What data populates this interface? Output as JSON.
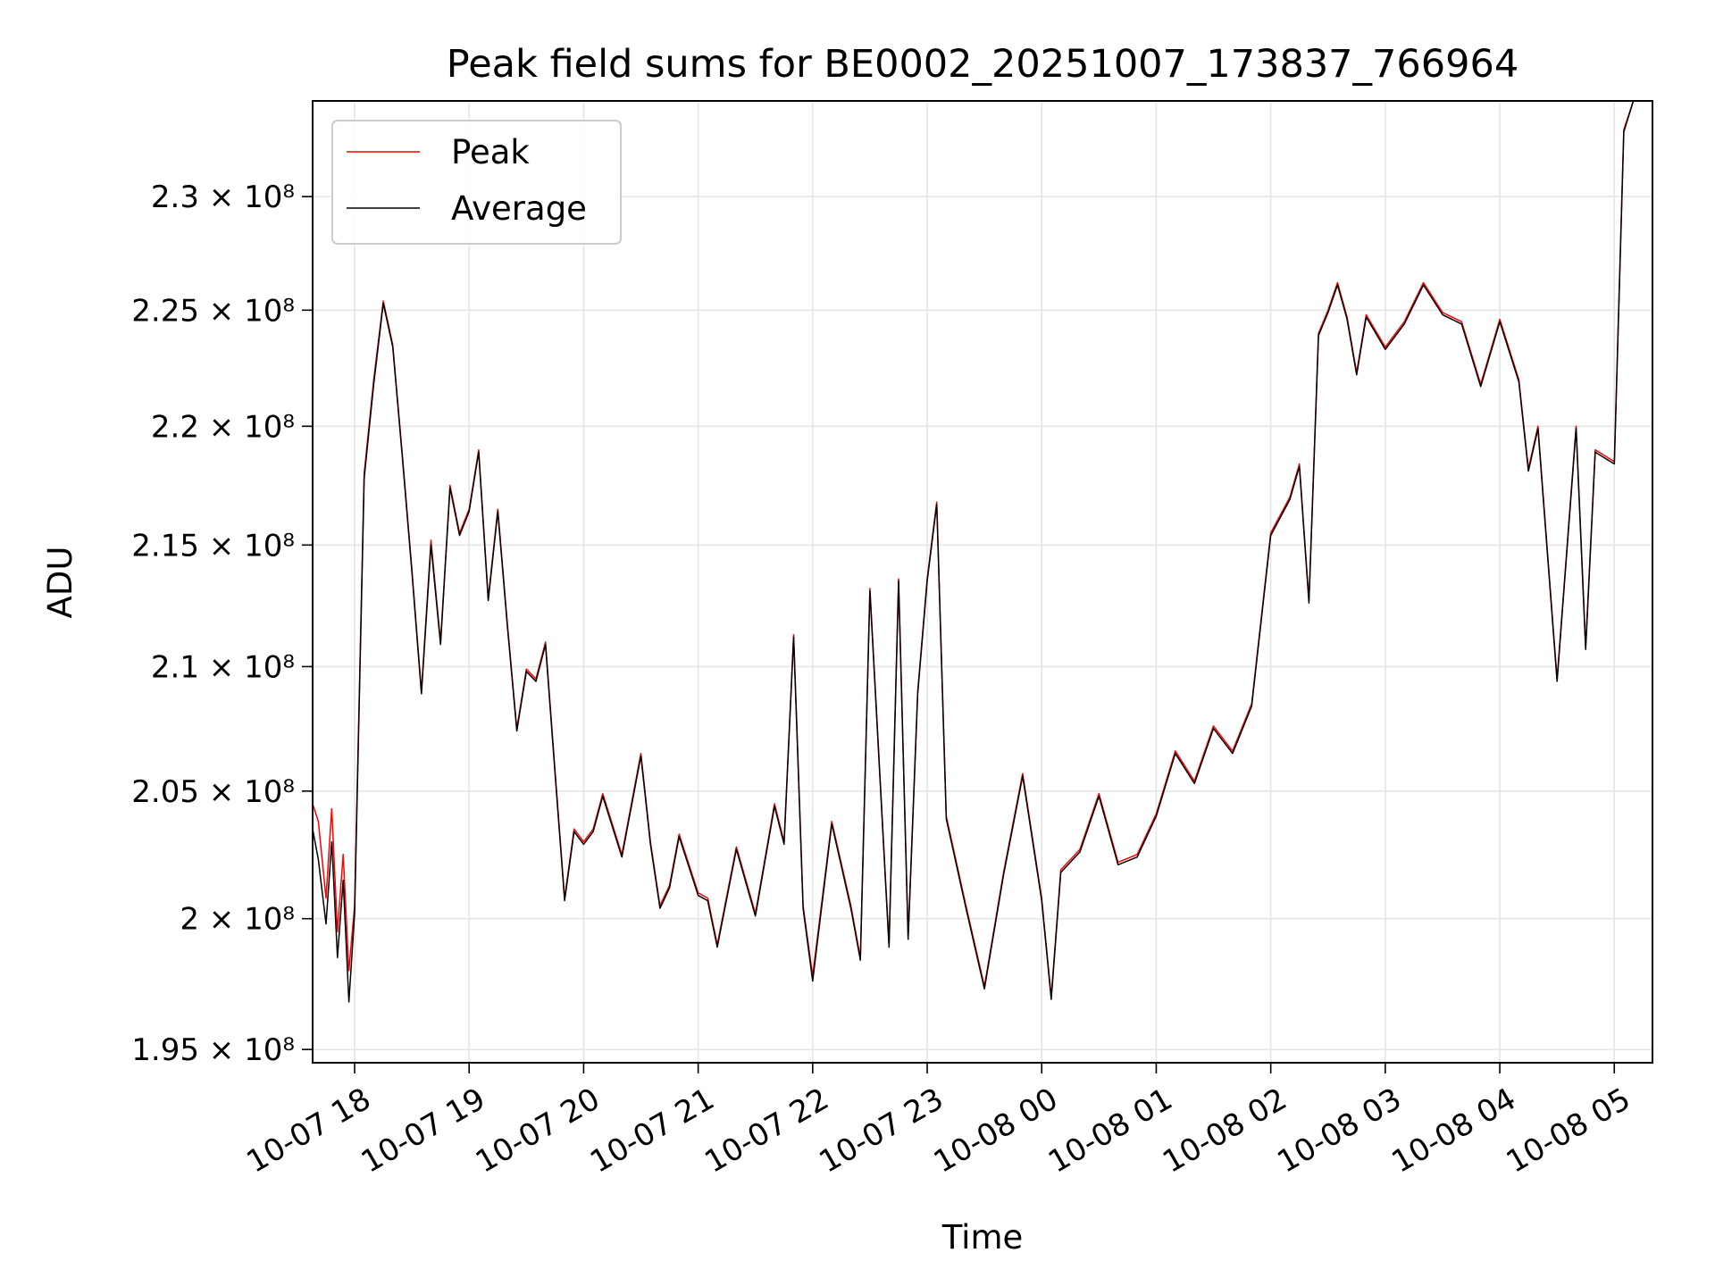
{
  "chart_data": {
    "type": "line",
    "title": "Peak field sums for BE0002_20251007_173837_766964",
    "xlabel": "Time",
    "ylabel": "ADU",
    "xlim": [
      "2025-10-07 17:38",
      "2025-10-08 05:20"
    ],
    "ylim": [
      194500000,
      234300000
    ],
    "y_scale": "log",
    "grid": true,
    "legend": "top-left",
    "x_ticks": [
      "10-07 18",
      "10-07 19",
      "10-07 20",
      "10-07 21",
      "10-07 22",
      "10-07 23",
      "10-08 00",
      "10-08 01",
      "10-08 02",
      "10-08 03",
      "10-08 04",
      "10-08 05"
    ],
    "y_ticks": [
      {
        "value": 195000000,
        "label": "1.95 × 10⁸"
      },
      {
        "value": 200000000,
        "label": "2 × 10⁸"
      },
      {
        "value": 205000000,
        "label": "2.05 × 10⁸"
      },
      {
        "value": 210000000,
        "label": "2.1 × 10⁸"
      },
      {
        "value": 215000000,
        "label": "2.15 × 10⁸"
      },
      {
        "value": 220000000,
        "label": "2.2 × 10⁸"
      },
      {
        "value": 225000000,
        "label": "2.25 × 10⁸"
      },
      {
        "value": 230000000,
        "label": "2.3 × 10⁸"
      }
    ],
    "series": [
      {
        "name": "Peak",
        "color": "#ff0000",
        "x": [
          "2025-10-07 17:38",
          "2025-10-07 17:41",
          "2025-10-07 17:45",
          "2025-10-07 17:48",
          "2025-10-07 17:51",
          "2025-10-07 17:54",
          "2025-10-07 17:57",
          "2025-10-07 18:00",
          "2025-10-07 18:05",
          "2025-10-07 18:10",
          "2025-10-07 18:15",
          "2025-10-07 18:20",
          "2025-10-07 18:25",
          "2025-10-07 18:30",
          "2025-10-07 18:35",
          "2025-10-07 18:40",
          "2025-10-07 18:45",
          "2025-10-07 18:50",
          "2025-10-07 18:55",
          "2025-10-07 19:00",
          "2025-10-07 19:05",
          "2025-10-07 19:10",
          "2025-10-07 19:15",
          "2025-10-07 19:20",
          "2025-10-07 19:25",
          "2025-10-07 19:30",
          "2025-10-07 19:35",
          "2025-10-07 19:40",
          "2025-10-07 19:45",
          "2025-10-07 19:50",
          "2025-10-07 19:55",
          "2025-10-07 20:00",
          "2025-10-07 20:05",
          "2025-10-07 20:10",
          "2025-10-07 20:20",
          "2025-10-07 20:30",
          "2025-10-07 20:35",
          "2025-10-07 20:40",
          "2025-10-07 20:45",
          "2025-10-07 20:50",
          "2025-10-07 21:00",
          "2025-10-07 21:05",
          "2025-10-07 21:10",
          "2025-10-07 21:20",
          "2025-10-07 21:30",
          "2025-10-07 21:40",
          "2025-10-07 21:45",
          "2025-10-07 21:50",
          "2025-10-07 21:55",
          "2025-10-07 22:00",
          "2025-10-07 22:10",
          "2025-10-07 22:20",
          "2025-10-07 22:25",
          "2025-10-07 22:30",
          "2025-10-07 22:40",
          "2025-10-07 22:45",
          "2025-10-07 22:50",
          "2025-10-07 22:55",
          "2025-10-07 23:00",
          "2025-10-07 23:05",
          "2025-10-07 23:10",
          "2025-10-07 23:20",
          "2025-10-07 23:30",
          "2025-10-07 23:40",
          "2025-10-07 23:50",
          "2025-10-08 00:00",
          "2025-10-08 00:05",
          "2025-10-08 00:10",
          "2025-10-08 00:20",
          "2025-10-08 00:30",
          "2025-10-08 00:40",
          "2025-10-08 00:50",
          "2025-10-08 01:00",
          "2025-10-08 01:10",
          "2025-10-08 01:20",
          "2025-10-08 01:30",
          "2025-10-08 01:40",
          "2025-10-08 01:50",
          "2025-10-08 02:00",
          "2025-10-08 02:10",
          "2025-10-08 02:15",
          "2025-10-08 02:20",
          "2025-10-08 02:25",
          "2025-10-08 02:30",
          "2025-10-08 02:35",
          "2025-10-08 02:40",
          "2025-10-08 02:45",
          "2025-10-08 02:50",
          "2025-10-08 03:00",
          "2025-10-08 03:10",
          "2025-10-08 03:20",
          "2025-10-08 03:30",
          "2025-10-08 03:40",
          "2025-10-08 03:50",
          "2025-10-08 04:00",
          "2025-10-08 04:10",
          "2025-10-08 04:15",
          "2025-10-08 04:20",
          "2025-10-08 04:30",
          "2025-10-08 04:40",
          "2025-10-08 04:45",
          "2025-10-08 04:50",
          "2025-10-08 05:00",
          "2025-10-08 05:05",
          "2025-10-08 05:10",
          "2025-10-08 05:15",
          "2025-10-08 05:20"
        ],
        "values": [
          204500000,
          203800000,
          200800000,
          204300000,
          199500000,
          202500000,
          198000000,
          200500000,
          218000000,
          222000000,
          225400000,
          223500000,
          218800000,
          214000000,
          209000000,
          215200000,
          211000000,
          217500000,
          215500000,
          216500000,
          219000000,
          212800000,
          216500000,
          211800000,
          207500000,
          209900000,
          209500000,
          211000000,
          205800000,
          200800000,
          203500000,
          203000000,
          203500000,
          204900000,
          202500000,
          206500000,
          203000000,
          200500000,
          201300000,
          203300000,
          201000000,
          200800000,
          199000000,
          202800000,
          200200000,
          204500000,
          203000000,
          211300000,
          200500000,
          197800000,
          203800000,
          200500000,
          198500000,
          213200000,
          199000000,
          213600000,
          199300000,
          209000000,
          213600000,
          216800000,
          204000000,
          200600000,
          197400000,
          201800000,
          205700000,
          200800000,
          197000000,
          201900000,
          202700000,
          204900000,
          202200000,
          202500000,
          204100000,
          206600000,
          205400000,
          207600000,
          206600000,
          208500000,
          215500000,
          217000000,
          218400000,
          212700000,
          224000000,
          225000000,
          226200000,
          224700000,
          222300000,
          224800000,
          223400000,
          224500000,
          226200000,
          224900000,
          224500000,
          221800000,
          224600000,
          222000000,
          218200000,
          220000000,
          209500000,
          220000000,
          210800000,
          219000000,
          218500000,
          233000000,
          234300000,
          234300000,
          234300000
        ]
      },
      {
        "name": "Average",
        "color": "#000000",
        "x": [
          "2025-10-07 17:38",
          "2025-10-07 17:41",
          "2025-10-07 17:45",
          "2025-10-07 17:48",
          "2025-10-07 17:51",
          "2025-10-07 17:54",
          "2025-10-07 17:57",
          "2025-10-07 18:00",
          "2025-10-07 18:05",
          "2025-10-07 18:10",
          "2025-10-07 18:15",
          "2025-10-07 18:20",
          "2025-10-07 18:25",
          "2025-10-07 18:30",
          "2025-10-07 18:35",
          "2025-10-07 18:40",
          "2025-10-07 18:45",
          "2025-10-07 18:50",
          "2025-10-07 18:55",
          "2025-10-07 19:00",
          "2025-10-07 19:05",
          "2025-10-07 19:10",
          "2025-10-07 19:15",
          "2025-10-07 19:20",
          "2025-10-07 19:25",
          "2025-10-07 19:30",
          "2025-10-07 19:35",
          "2025-10-07 19:40",
          "2025-10-07 19:45",
          "2025-10-07 19:50",
          "2025-10-07 19:55",
          "2025-10-07 20:00",
          "2025-10-07 20:05",
          "2025-10-07 20:10",
          "2025-10-07 20:20",
          "2025-10-07 20:30",
          "2025-10-07 20:35",
          "2025-10-07 20:40",
          "2025-10-07 20:45",
          "2025-10-07 20:50",
          "2025-10-07 21:00",
          "2025-10-07 21:05",
          "2025-10-07 21:10",
          "2025-10-07 21:20",
          "2025-10-07 21:30",
          "2025-10-07 21:40",
          "2025-10-07 21:45",
          "2025-10-07 21:50",
          "2025-10-07 21:55",
          "2025-10-07 22:00",
          "2025-10-07 22:10",
          "2025-10-07 22:20",
          "2025-10-07 22:25",
          "2025-10-07 22:30",
          "2025-10-07 22:40",
          "2025-10-07 22:45",
          "2025-10-07 22:50",
          "2025-10-07 22:55",
          "2025-10-07 23:00",
          "2025-10-07 23:05",
          "2025-10-07 23:10",
          "2025-10-07 23:20",
          "2025-10-07 23:30",
          "2025-10-07 23:40",
          "2025-10-07 23:50",
          "2025-10-08 00:00",
          "2025-10-08 00:05",
          "2025-10-08 00:10",
          "2025-10-08 00:20",
          "2025-10-08 00:30",
          "2025-10-08 00:40",
          "2025-10-08 00:50",
          "2025-10-08 01:00",
          "2025-10-08 01:10",
          "2025-10-08 01:20",
          "2025-10-08 01:30",
          "2025-10-08 01:40",
          "2025-10-08 01:50",
          "2025-10-08 02:00",
          "2025-10-08 02:10",
          "2025-10-08 02:15",
          "2025-10-08 02:20",
          "2025-10-08 02:25",
          "2025-10-08 02:30",
          "2025-10-08 02:35",
          "2025-10-08 02:40",
          "2025-10-08 02:45",
          "2025-10-08 02:50",
          "2025-10-08 03:00",
          "2025-10-08 03:10",
          "2025-10-08 03:20",
          "2025-10-08 03:30",
          "2025-10-08 03:40",
          "2025-10-08 03:50",
          "2025-10-08 04:00",
          "2025-10-08 04:10",
          "2025-10-08 04:15",
          "2025-10-08 04:20",
          "2025-10-08 04:30",
          "2025-10-08 04:40",
          "2025-10-08 04:45",
          "2025-10-08 04:50",
          "2025-10-08 05:00",
          "2025-10-08 05:05",
          "2025-10-08 05:10",
          "2025-10-08 05:15",
          "2025-10-08 05:20"
        ],
        "values": [
          203500000,
          202300000,
          199800000,
          203000000,
          198500000,
          201500000,
          196800000,
          200200000,
          217800000,
          221800000,
          225300000,
          223400000,
          218700000,
          213900000,
          208900000,
          215000000,
          210900000,
          217400000,
          215400000,
          216400000,
          218900000,
          212700000,
          216400000,
          211700000,
          207400000,
          209800000,
          209400000,
          210900000,
          205700000,
          200700000,
          203400000,
          202900000,
          203400000,
          204800000,
          202400000,
          206400000,
          202900000,
          200400000,
          201200000,
          203200000,
          200900000,
          200700000,
          198900000,
          202700000,
          200100000,
          204400000,
          202900000,
          211200000,
          200400000,
          197600000,
          203700000,
          200400000,
          198400000,
          213100000,
          198900000,
          213500000,
          199200000,
          208900000,
          213500000,
          216700000,
          203900000,
          200500000,
          197300000,
          201700000,
          205600000,
          200700000,
          196900000,
          201800000,
          202600000,
          204800000,
          202100000,
          202400000,
          204000000,
          206500000,
          205300000,
          207500000,
          206500000,
          208400000,
          215400000,
          216900000,
          218300000,
          212600000,
          223900000,
          224900000,
          226100000,
          224600000,
          222200000,
          224700000,
          223300000,
          224400000,
          226100000,
          224800000,
          224400000,
          221700000,
          224500000,
          221900000,
          218100000,
          219900000,
          209400000,
          219900000,
          210700000,
          218900000,
          218400000,
          232900000,
          234300000,
          234300000,
          234300000
        ]
      }
    ]
  }
}
